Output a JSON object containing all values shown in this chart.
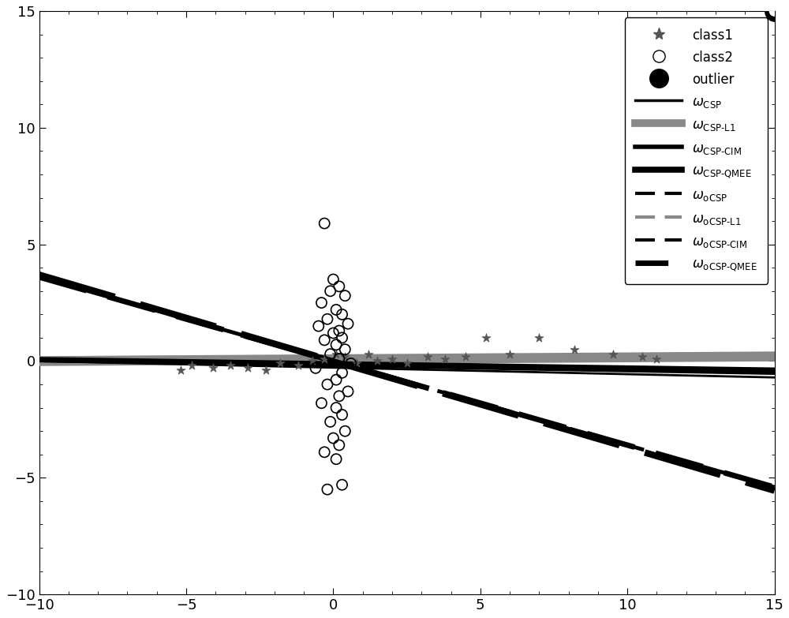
{
  "xlim": [
    -10,
    15
  ],
  "ylim": [
    -10,
    15
  ],
  "xticks": [
    -10,
    -5,
    0,
    5,
    10,
    15
  ],
  "yticks": [
    -10,
    -5,
    0,
    5,
    10,
    15
  ],
  "class1_x": [
    -5.2,
    -4.8,
    -4.1,
    -3.5,
    -2.9,
    -2.3,
    -1.8,
    -1.2,
    -0.7,
    -0.3,
    0.1,
    0.4,
    0.8,
    1.2,
    1.5,
    2.0,
    2.5,
    3.2,
    3.8,
    4.5,
    5.2,
    6.0,
    7.0,
    8.2,
    9.5,
    10.5,
    11.0
  ],
  "class1_y": [
    -0.4,
    -0.2,
    -0.3,
    -0.2,
    -0.3,
    -0.4,
    -0.1,
    -0.2,
    0.0,
    0.1,
    0.3,
    0.2,
    -0.1,
    0.3,
    0.0,
    0.1,
    -0.1,
    0.2,
    0.1,
    0.2,
    1.0,
    0.3,
    1.0,
    0.5,
    0.3,
    0.2,
    0.1
  ],
  "class2_x": [
    -0.3,
    0.0,
    0.2,
    -0.1,
    0.4,
    -0.4,
    0.1,
    0.3,
    -0.2,
    0.5,
    -0.5,
    0.2,
    0.0,
    0.3,
    -0.3,
    0.1,
    0.4,
    -0.1,
    0.2,
    0.6,
    -0.6,
    0.3,
    0.1,
    -0.2,
    0.5,
    0.2,
    -0.4,
    0.1,
    0.3,
    -0.1,
    0.4,
    0.0,
    0.2,
    -0.3,
    0.1,
    0.3,
    -0.2
  ],
  "class2_y": [
    5.9,
    3.5,
    3.2,
    3.0,
    2.8,
    2.5,
    2.2,
    2.0,
    1.8,
    1.6,
    1.5,
    1.3,
    1.2,
    1.0,
    0.9,
    0.7,
    0.5,
    0.3,
    0.1,
    -0.1,
    -0.3,
    -0.5,
    -0.8,
    -1.0,
    -1.3,
    -1.5,
    -1.8,
    -2.0,
    -2.3,
    -2.6,
    -3.0,
    -3.3,
    -3.6,
    -3.9,
    -4.2,
    -5.3,
    -5.5
  ],
  "outlier_x": [
    15.0
  ],
  "outlier_y": [
    15.0
  ],
  "line_x": [
    -10,
    15
  ],
  "csp_slope": -0.028,
  "csp_intercept": -0.28,
  "csp_l1_slope": 0.008,
  "csp_l1_intercept": 0.08,
  "csp_cim_slope": -0.022,
  "csp_cim_intercept": -0.18,
  "csp_qmee_slope": -0.018,
  "csp_qmee_intercept": -0.12,
  "ocsp_slope": -0.37,
  "ocsp_intercept": 0.0,
  "ocsp_l1_slope": 0.008,
  "ocsp_l1_intercept": 0.0,
  "ocsp_cim_slope": -0.36,
  "ocsp_cim_intercept": 0.0,
  "ocsp_qmee_slope": -0.36,
  "ocsp_qmee_intercept": 0.0,
  "background_color": "#ffffff",
  "fig_width": 10.0,
  "fig_height": 7.83
}
